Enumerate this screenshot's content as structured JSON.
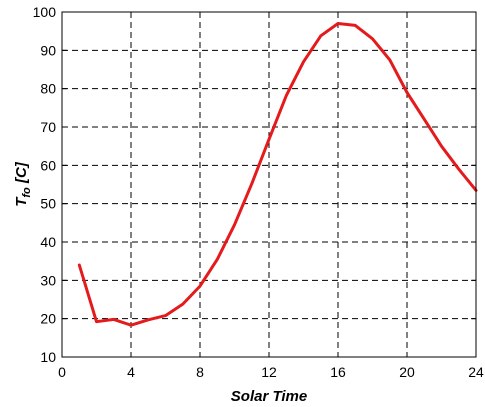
{
  "chart_data": {
    "type": "line",
    "title": "",
    "xlabel": "Solar Time",
    "ylabel_main": "T",
    "ylabel_sub": "fo",
    "ylabel_unit": " [C]",
    "xlim": [
      0,
      24
    ],
    "ylim": [
      10,
      100
    ],
    "grid": true,
    "x_ticks": [
      0,
      4,
      8,
      12,
      16,
      20,
      24
    ],
    "y_ticks": [
      10,
      20,
      30,
      40,
      50,
      60,
      70,
      80,
      90,
      100
    ],
    "x_tick_labels": [
      "0",
      "4",
      "8",
      "12",
      "16",
      "20",
      "24"
    ],
    "y_tick_labels": [
      "10",
      "20",
      "30",
      "40",
      "50",
      "60",
      "70",
      "80",
      "90",
      "100"
    ],
    "series": [
      {
        "color": "#e41a1c",
        "x": [
          1,
          2,
          3,
          4,
          5,
          6,
          7,
          8,
          9,
          10,
          11,
          12,
          13,
          14,
          15,
          16,
          17,
          18,
          19,
          20,
          21,
          22,
          23,
          24
        ],
        "y": [
          34,
          19.2,
          19.8,
          18.3,
          19.7,
          20.8,
          23.8,
          28.5,
          35.5,
          44.5,
          55.2,
          66.8,
          78.2,
          87.0,
          93.8,
          97.0,
          96.5,
          93.0,
          87.5,
          79.0,
          72.0,
          65.0,
          59.0,
          53.5
        ]
      }
    ]
  }
}
